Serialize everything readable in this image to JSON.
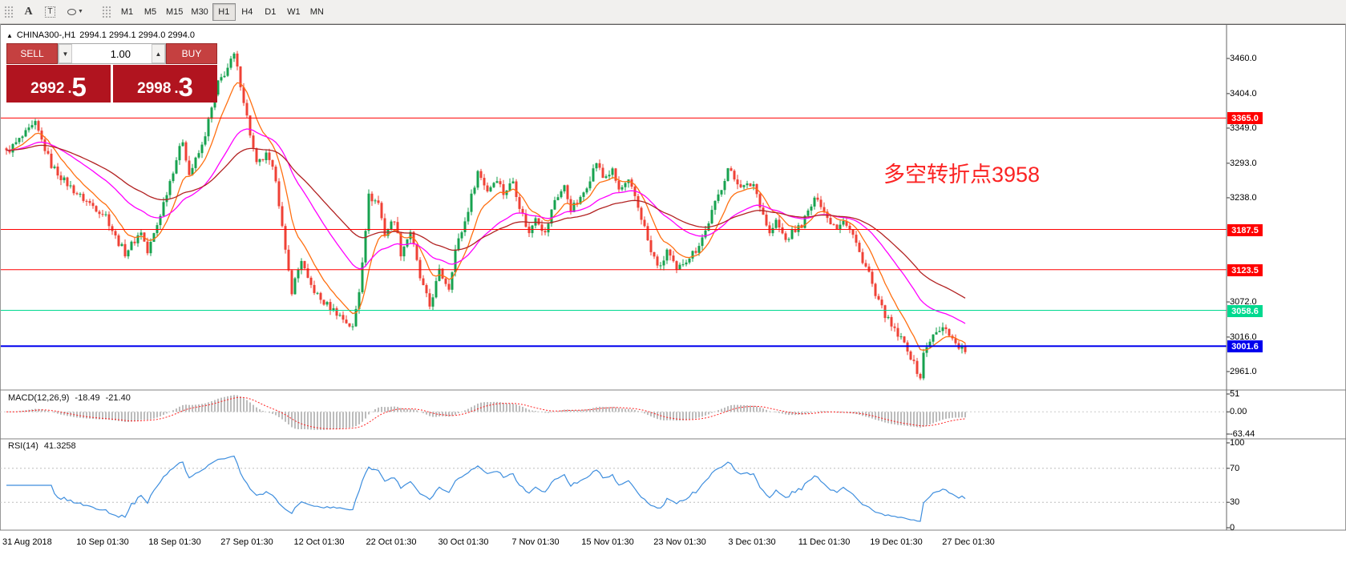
{
  "toolbar": {
    "tools": {
      "a_glyph": "A",
      "t_glyph": "T"
    },
    "timeframes": [
      "M1",
      "M5",
      "M15",
      "M30",
      "H1",
      "H4",
      "D1",
      "W1",
      "MN"
    ],
    "active_timeframe": "H1"
  },
  "chart": {
    "symbol": "CHINA300-,H1",
    "ohlc": "2994.1 2994.1 2994.0 2994.0",
    "annotation": {
      "text": "多空转折点3958",
      "color": "#fb2323"
    }
  },
  "trade_panel": {
    "sell_label": "SELL",
    "buy_label": "BUY",
    "volume": "1.00",
    "sell_price_main": "2992",
    "sell_price_dot": ".",
    "sell_price_big": "5",
    "buy_price_main": "2998",
    "buy_price_dot": ".",
    "buy_price_big": "3"
  },
  "price_axis": {
    "ticks": [
      3460.0,
      3404.0,
      3349.0,
      3293.0,
      3238.0,
      3072.0,
      3016.0,
      2961.0
    ]
  },
  "levels": [
    {
      "price": 3365.0,
      "label": "3365.0",
      "color": "#ff0000",
      "thickness": 1
    },
    {
      "price": 3187.5,
      "label": "3187.5",
      "color": "#ff0000",
      "thickness": 1
    },
    {
      "price": 3123.5,
      "label": "3123.5",
      "color": "#ff0000",
      "thickness": 1
    },
    {
      "price": 3058.6,
      "label": "3058.6",
      "color": "#00d98f",
      "thickness": 1
    },
    {
      "price": 3001.6,
      "label": "3001.6",
      "color": "#0000ee",
      "thickness": 2
    }
  ],
  "macd": {
    "name": "MACD(12,26,9)",
    "value1": "-18.49",
    "value2": "-21.40",
    "axis_labels": [
      "51",
      "0.00",
      "-63.44"
    ],
    "axis_values": [
      51,
      0,
      -63.44
    ],
    "histogram_color": "#bcbcbc",
    "signal_color": "#ff2222"
  },
  "rsi": {
    "name": "RSI(14)",
    "value": "41.3258",
    "axis_labels": [
      "100",
      "70",
      "30",
      "0"
    ],
    "axis_values": [
      100,
      70,
      30,
      0
    ],
    "levels": [
      70,
      30
    ],
    "line_color": "#3e8ede"
  },
  "dates": [
    {
      "label": "31 Aug 2018",
      "i": 0
    },
    {
      "label": "10 Sep 01:30",
      "i": 30
    },
    {
      "label": "18 Sep 01:30",
      "i": 52.5
    },
    {
      "label": "27 Sep 01:30",
      "i": 75
    },
    {
      "label": "12 Oct 01:30",
      "i": 97.5
    },
    {
      "label": "22 Oct 01:30",
      "i": 120
    },
    {
      "label": "30 Oct 01:30",
      "i": 142.5
    },
    {
      "label": "7 Nov 01:30",
      "i": 165
    },
    {
      "label": "15 Nov 01:30",
      "i": 187.5
    },
    {
      "label": "23 Nov 01:30",
      "i": 210
    },
    {
      "label": "3 Dec 01:30",
      "i": 232.5
    },
    {
      "label": "11 Dec 01:30",
      "i": 255
    },
    {
      "label": "19 Dec 01:30",
      "i": 277.5
    },
    {
      "label": "27 Dec 01:30",
      "i": 300
    }
  ],
  "chart_data": {
    "type": "candlestick",
    "symbol": "CHINA300-",
    "timeframe": "H1",
    "title": "CHINA300-,H1",
    "price_range_visible": [
      2961.0,
      3460.0
    ],
    "candle_count": 300,
    "up_color": "#17a24f",
    "down_color": "#ef4136",
    "noise": {
      "close_amp": 6,
      "wick_amp": 8
    },
    "close_path_anchors": [
      [
        0,
        3310
      ],
      [
        4,
        3330
      ],
      [
        9,
        3355
      ],
      [
        14,
        3290
      ],
      [
        18,
        3265
      ],
      [
        23,
        3240
      ],
      [
        27,
        3225
      ],
      [
        31,
        3210
      ],
      [
        34,
        3175
      ],
      [
        37,
        3150
      ],
      [
        40,
        3170
      ],
      [
        42,
        3185
      ],
      [
        44,
        3150
      ],
      [
        47,
        3195
      ],
      [
        49,
        3230
      ],
      [
        53,
        3300
      ],
      [
        55,
        3330
      ],
      [
        57,
        3275
      ],
      [
        61,
        3320
      ],
      [
        66,
        3420
      ],
      [
        69,
        3445
      ],
      [
        71,
        3465
      ],
      [
        73,
        3420
      ],
      [
        76,
        3340
      ],
      [
        78,
        3290
      ],
      [
        81,
        3305
      ],
      [
        84,
        3270
      ],
      [
        87,
        3150
      ],
      [
        89,
        3090
      ],
      [
        92,
        3140
      ],
      [
        94,
        3105
      ],
      [
        98,
        3075
      ],
      [
        103,
        3055
      ],
      [
        106,
        3040
      ],
      [
        108,
        3030
      ],
      [
        110,
        3090
      ],
      [
        113,
        3240
      ],
      [
        116,
        3230
      ],
      [
        118,
        3180
      ],
      [
        121,
        3205
      ],
      [
        123,
        3150
      ],
      [
        126,
        3185
      ],
      [
        129,
        3110
      ],
      [
        132,
        3065
      ],
      [
        135,
        3120
      ],
      [
        138,
        3095
      ],
      [
        140,
        3155
      ],
      [
        143,
        3200
      ],
      [
        147,
        3280
      ],
      [
        150,
        3250
      ],
      [
        153,
        3270
      ],
      [
        155,
        3245
      ],
      [
        158,
        3265
      ],
      [
        160,
        3225
      ],
      [
        163,
        3180
      ],
      [
        165,
        3210
      ],
      [
        168,
        3180
      ],
      [
        171,
        3235
      ],
      [
        174,
        3255
      ],
      [
        176,
        3220
      ],
      [
        179,
        3235
      ],
      [
        182,
        3270
      ],
      [
        184,
        3295
      ],
      [
        186,
        3270
      ],
      [
        189,
        3280
      ],
      [
        191,
        3250
      ],
      [
        194,
        3262
      ],
      [
        196,
        3240
      ],
      [
        199,
        3190
      ],
      [
        201,
        3150
      ],
      [
        204,
        3125
      ],
      [
        206,
        3155
      ],
      [
        209,
        3120
      ],
      [
        211,
        3135
      ],
      [
        215,
        3155
      ],
      [
        218,
        3185
      ],
      [
        220,
        3215
      ],
      [
        223,
        3255
      ],
      [
        225,
        3285
      ],
      [
        227,
        3268
      ],
      [
        230,
        3255
      ],
      [
        233,
        3260
      ],
      [
        235,
        3228
      ],
      [
        238,
        3180
      ],
      [
        240,
        3200
      ],
      [
        243,
        3170
      ],
      [
        245,
        3182
      ],
      [
        248,
        3195
      ],
      [
        251,
        3225
      ],
      [
        253,
        3240
      ],
      [
        256,
        3205
      ],
      [
        259,
        3192
      ],
      [
        261,
        3205
      ],
      [
        264,
        3178
      ],
      [
        266,
        3150
      ],
      [
        269,
        3118
      ],
      [
        271,
        3080
      ],
      [
        274,
        3052
      ],
      [
        276,
        3032
      ],
      [
        279,
        3012
      ],
      [
        281,
        2998
      ],
      [
        283,
        2972
      ],
      [
        285,
        2952
      ],
      [
        286,
        2988
      ],
      [
        288,
        3012
      ],
      [
        290,
        3022
      ],
      [
        293,
        3032
      ],
      [
        295,
        3012
      ],
      [
        297,
        3002
      ],
      [
        299,
        2994
      ]
    ],
    "moving_averages": [
      {
        "period": 10,
        "color": "#ff7012"
      },
      {
        "period": 32,
        "color": "#ff00ff"
      },
      {
        "period": 58,
        "color": "#b22222"
      }
    ]
  }
}
